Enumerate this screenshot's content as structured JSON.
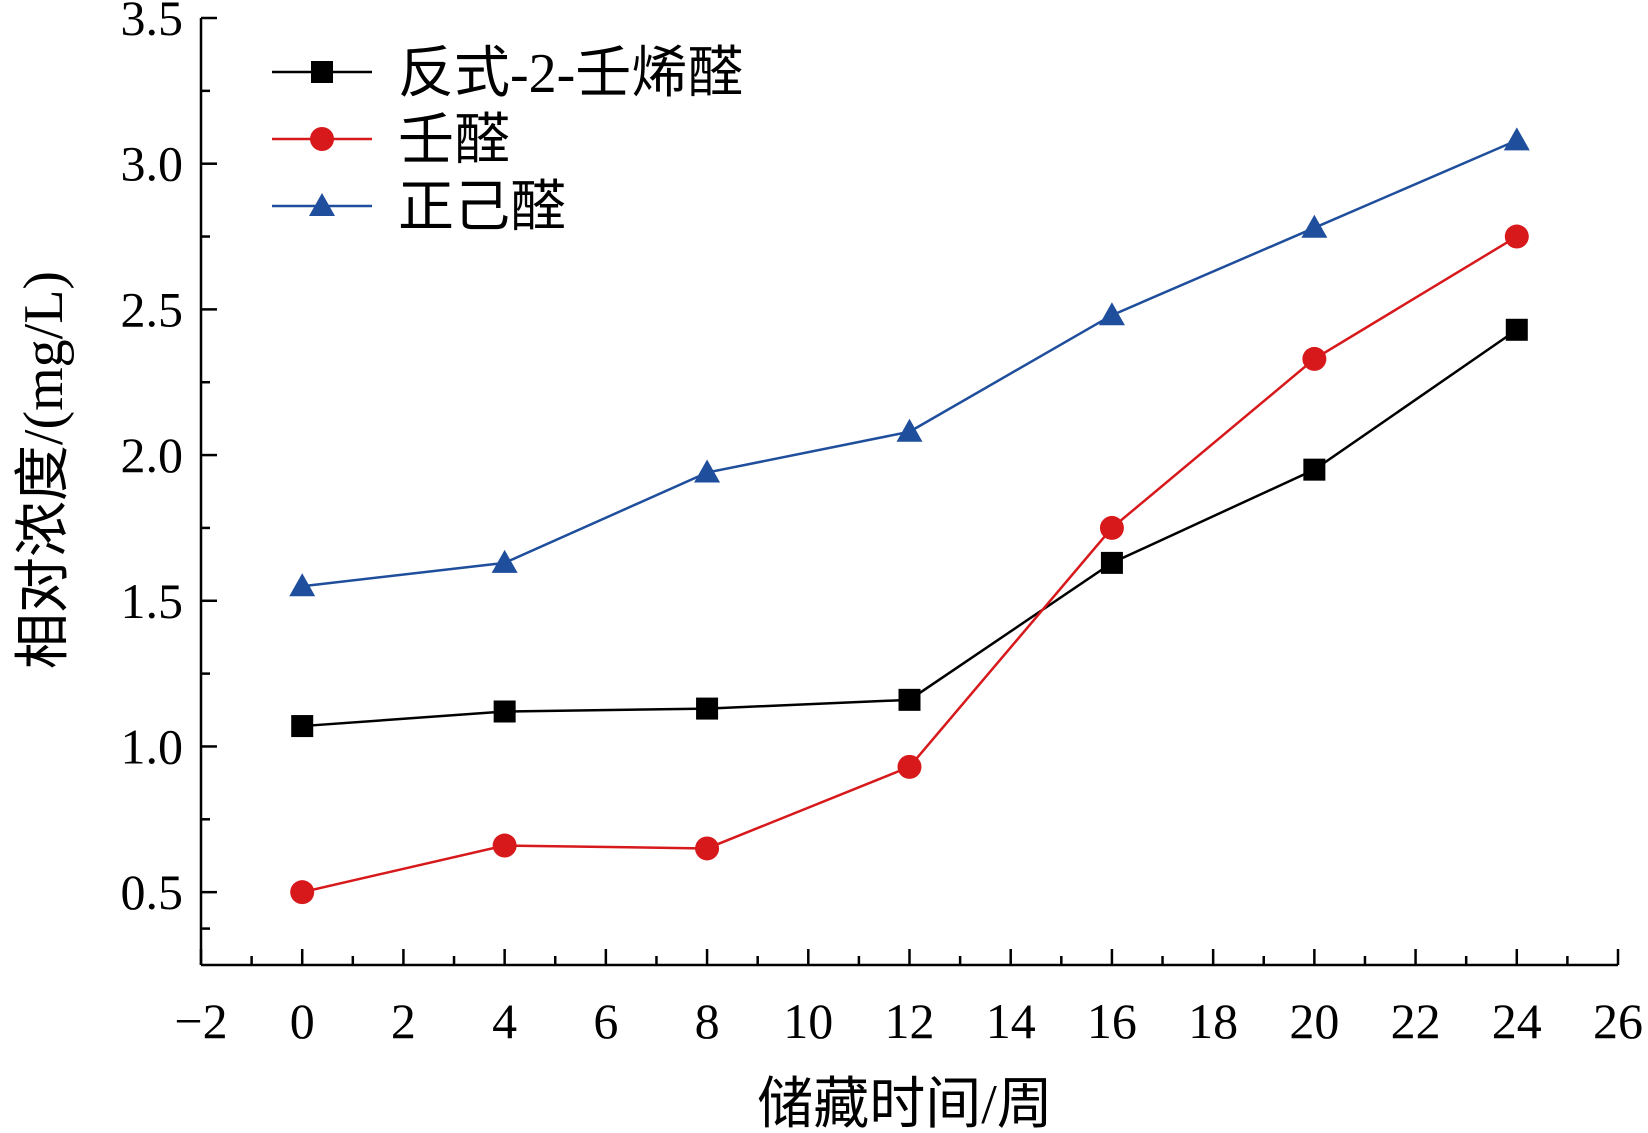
{
  "chart_data": {
    "type": "line",
    "title": "",
    "xlabel": "储藏时间/周",
    "ylabel": "相对浓度/(mg/L)",
    "xlim": [
      -2,
      26
    ],
    "ylim": [
      0.25,
      3.5
    ],
    "xticks": [
      -2,
      0,
      2,
      4,
      6,
      8,
      10,
      12,
      14,
      16,
      18,
      20,
      22,
      24,
      26
    ],
    "xtick_labels": [
      "−2",
      "0",
      "2",
      "4",
      "6",
      "8",
      "10",
      "12",
      "14",
      "16",
      "18",
      "20",
      "22",
      "24",
      "26"
    ],
    "yticks": [
      0.5,
      1.0,
      1.5,
      2.0,
      2.5,
      3.0,
      3.5
    ],
    "ytick_labels": [
      "0.5",
      "1.0",
      "1.5",
      "2.0",
      "2.5",
      "3.0",
      "3.5"
    ],
    "grid": false,
    "legend_position": "top-left",
    "x": [
      0,
      4,
      8,
      12,
      16,
      20,
      24
    ],
    "series": [
      {
        "name": "反式-2-壬烯醛",
        "marker": "square",
        "color": "#000000",
        "values": [
          1.07,
          1.12,
          1.13,
          1.16,
          1.63,
          1.95,
          2.43
        ]
      },
      {
        "name": "壬醛",
        "marker": "circle",
        "color": "#d7191c",
        "values": [
          0.5,
          0.66,
          0.65,
          0.93,
          1.75,
          2.33,
          2.75
        ]
      },
      {
        "name": "正己醛",
        "marker": "triangle",
        "color": "#1f4e9c",
        "values": [
          1.55,
          1.63,
          1.94,
          2.08,
          2.48,
          2.78,
          3.08
        ]
      }
    ]
  }
}
